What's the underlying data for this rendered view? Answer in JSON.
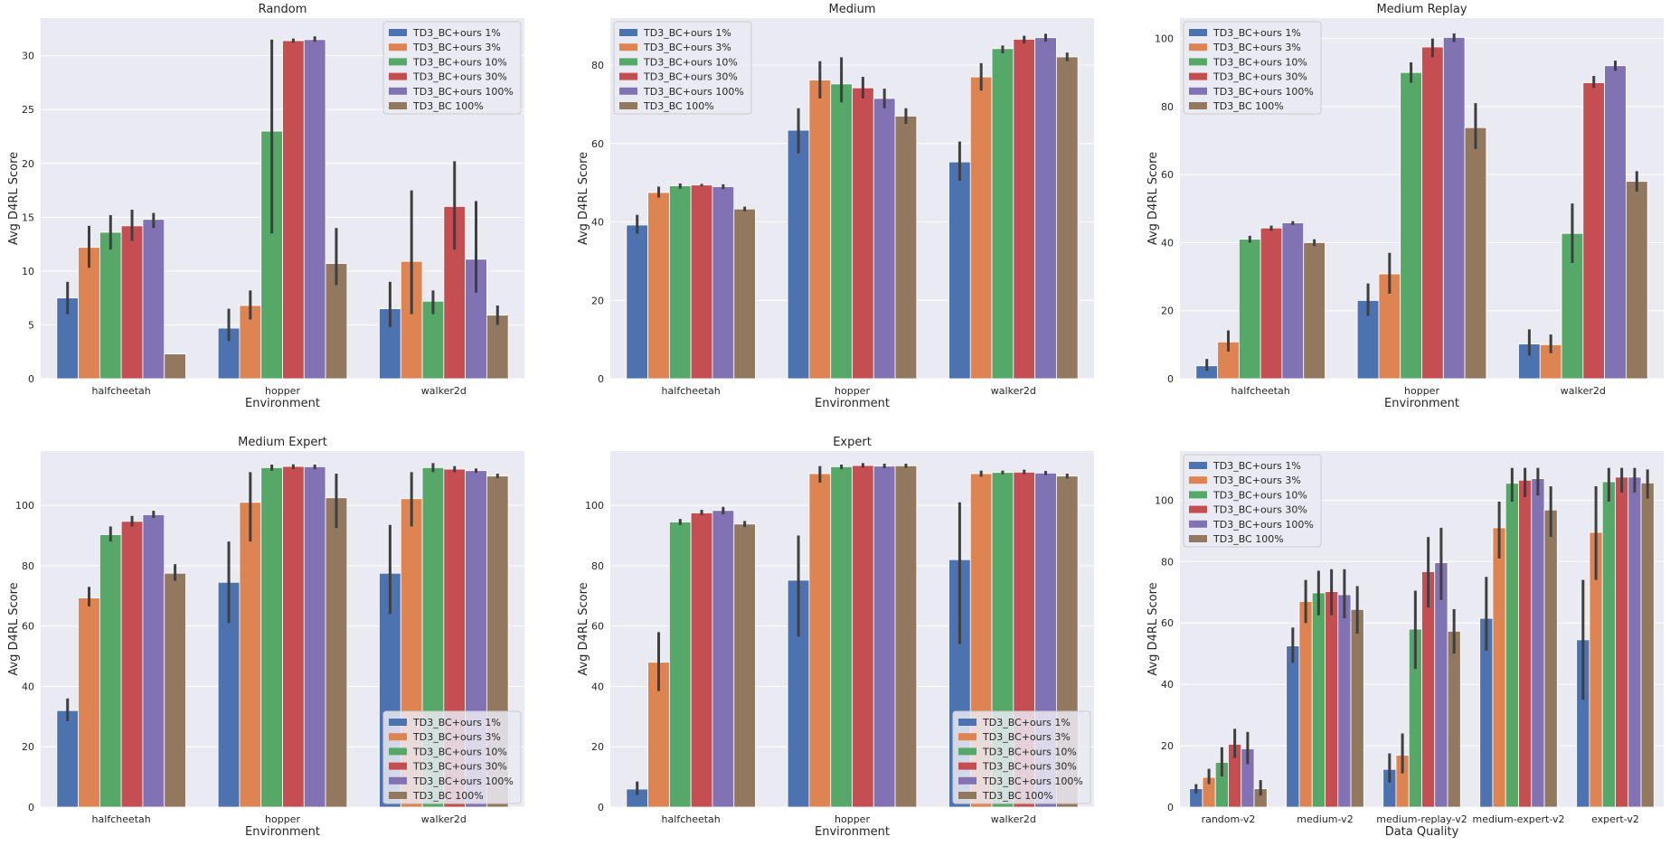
{
  "figure": {
    "series_names": [
      "TD3_BC+ours 1%",
      "TD3_BC+ours 3%",
      "TD3_BC+ours 10%",
      "TD3_BC+ours 30%",
      "TD3_BC+ours 100%",
      "TD3_BC 100%"
    ],
    "series_colors": [
      "#4c72b0",
      "#dd8452",
      "#55a868",
      "#c44e52",
      "#8172b3",
      "#937860"
    ],
    "background_color": "#eaeaf2",
    "error_bar_color": "#3f3f3f"
  },
  "chart_data": [
    {
      "type": "bar",
      "title": "Random",
      "xlabel": "Environment",
      "ylabel": "Avg D4RL Score",
      "ylim": [
        0,
        33.5
      ],
      "yticks": [
        0,
        5,
        10,
        15,
        20,
        25,
        30
      ],
      "legend": "top-right",
      "categories": [
        "halfcheetah",
        "hopper",
        "walker2d"
      ],
      "series": [
        {
          "name": "TD3_BC+ours 1%",
          "values": [
            7.5,
            4.7,
            6.5
          ],
          "err_low": [
            6.0,
            3.5,
            4.8
          ],
          "err_high": [
            9.0,
            6.5,
            9.0
          ]
        },
        {
          "name": "TD3_BC+ours 3%",
          "values": [
            12.2,
            6.8,
            10.9
          ],
          "err_low": [
            10.3,
            5.5,
            6.0
          ],
          "err_high": [
            14.2,
            8.2,
            17.5
          ]
        },
        {
          "name": "TD3_BC+ours 10%",
          "values": [
            13.6,
            23.0,
            7.2
          ],
          "err_low": [
            12.0,
            13.5,
            6.0
          ],
          "err_high": [
            15.2,
            31.5,
            8.2
          ]
        },
        {
          "name": "TD3_BC+ours 30%",
          "values": [
            14.2,
            31.4,
            16.0
          ],
          "err_low": [
            12.8,
            31.2,
            12.0
          ],
          "err_high": [
            15.7,
            31.6,
            20.2
          ]
        },
        {
          "name": "TD3_BC+ours 100%",
          "values": [
            14.8,
            31.5,
            11.1
          ],
          "err_low": [
            14.0,
            31.3,
            8.0
          ],
          "err_high": [
            15.4,
            31.8,
            16.5
          ]
        },
        {
          "name": "TD3_BC 100%",
          "values": [
            2.3,
            10.7,
            5.9
          ],
          "err_low": [
            2.3,
            8.7,
            5.0
          ],
          "err_high": [
            2.3,
            14.0,
            6.8
          ]
        }
      ]
    },
    {
      "type": "bar",
      "title": "Medium",
      "xlabel": "Environment",
      "ylabel": "Avg D4RL Score",
      "ylim": [
        0,
        92
      ],
      "yticks": [
        0,
        20,
        40,
        60,
        80
      ],
      "legend": "top-left",
      "categories": [
        "halfcheetah",
        "hopper",
        "walker2d"
      ],
      "series": [
        {
          "name": "TD3_BC+ours 1%",
          "values": [
            39.2,
            63.4,
            55.3
          ],
          "err_low": [
            37.0,
            57.5,
            50.5
          ],
          "err_high": [
            41.8,
            69.0,
            60.5
          ]
        },
        {
          "name": "TD3_BC+ours 3%",
          "values": [
            47.5,
            76.2,
            77.0
          ],
          "err_low": [
            46.2,
            71.5,
            73.5
          ],
          "err_high": [
            49.0,
            81.0,
            80.5
          ]
        },
        {
          "name": "TD3_BC+ours 10%",
          "values": [
            49.2,
            75.2,
            84.2
          ],
          "err_low": [
            48.5,
            70.5,
            83.0
          ],
          "err_high": [
            49.8,
            82.0,
            85.0
          ]
        },
        {
          "name": "TD3_BC+ours 30%",
          "values": [
            49.4,
            74.2,
            86.6
          ],
          "err_low": [
            49.1,
            71.5,
            85.5
          ],
          "err_high": [
            49.7,
            77.0,
            87.5
          ]
        },
        {
          "name": "TD3_BC+ours 100%",
          "values": [
            49.0,
            71.5,
            87.0
          ],
          "err_low": [
            48.4,
            69.0,
            86.0
          ],
          "err_high": [
            49.6,
            74.0,
            88.0
          ]
        },
        {
          "name": "TD3_BC 100%",
          "values": [
            43.3,
            67.0,
            82.1
          ],
          "err_low": [
            42.7,
            65.0,
            81.0
          ],
          "err_high": [
            43.9,
            69.0,
            83.2
          ]
        }
      ]
    },
    {
      "type": "bar",
      "title": "Medium Replay",
      "xlabel": "Environment",
      "ylabel": "Avg D4RL Score",
      "ylim": [
        0,
        106
      ],
      "yticks": [
        0,
        20,
        40,
        60,
        80,
        100
      ],
      "legend": "top-left",
      "categories": [
        "halfcheetah",
        "hopper",
        "walker2d"
      ],
      "series": [
        {
          "name": "TD3_BC+ours 1%",
          "values": [
            3.8,
            23.0,
            10.2
          ],
          "err_low": [
            2.3,
            18.5,
            6.8
          ],
          "err_high": [
            5.8,
            28.0,
            14.5
          ]
        },
        {
          "name": "TD3_BC+ours 3%",
          "values": [
            10.8,
            30.8,
            10.0
          ],
          "err_low": [
            8.0,
            25.0,
            7.5
          ],
          "err_high": [
            14.2,
            37.0,
            13.0
          ]
        },
        {
          "name": "TD3_BC+ours 10%",
          "values": [
            41.0,
            90.0,
            42.7
          ],
          "err_low": [
            40.0,
            87.0,
            34.0
          ],
          "err_high": [
            42.0,
            93.0,
            51.5
          ]
        },
        {
          "name": "TD3_BC+ours 30%",
          "values": [
            44.3,
            97.5,
            87.0
          ],
          "err_low": [
            43.5,
            94.5,
            85.5
          ],
          "err_high": [
            45.0,
            100.0,
            89.0
          ]
        },
        {
          "name": "TD3_BC+ours 100%",
          "values": [
            45.8,
            100.3,
            92.0
          ],
          "err_low": [
            45.2,
            99.0,
            90.5
          ],
          "err_high": [
            46.3,
            101.5,
            93.5
          ]
        },
        {
          "name": "TD3_BC 100%",
          "values": [
            40.0,
            73.8,
            58.0
          ],
          "err_low": [
            39.0,
            67.5,
            55.0
          ],
          "err_high": [
            41.0,
            81.0,
            61.0
          ]
        }
      ]
    },
    {
      "type": "bar",
      "title": "Medium Expert",
      "xlabel": "Environment",
      "ylabel": "Avg D4RL Score",
      "ylim": [
        0,
        118
      ],
      "yticks": [
        0,
        20,
        40,
        60,
        80,
        100
      ],
      "legend": "bottom-right",
      "categories": [
        "halfcheetah",
        "hopper",
        "walker2d"
      ],
      "series": [
        {
          "name": "TD3_BC+ours 1%",
          "values": [
            32.0,
            74.5,
            77.5
          ],
          "err_low": [
            28.5,
            61.0,
            64.0
          ],
          "err_high": [
            36.0,
            88.0,
            93.5
          ]
        },
        {
          "name": "TD3_BC+ours 3%",
          "values": [
            69.3,
            101.0,
            102.2
          ],
          "err_low": [
            66.5,
            88.0,
            93.0
          ],
          "err_high": [
            73.0,
            111.0,
            111.0
          ]
        },
        {
          "name": "TD3_BC+ours 10%",
          "values": [
            90.3,
            112.5,
            112.5
          ],
          "err_low": [
            88.0,
            111.5,
            111.0
          ],
          "err_high": [
            93.0,
            113.5,
            114.0
          ]
        },
        {
          "name": "TD3_BC+ours 30%",
          "values": [
            94.7,
            112.9,
            112.0
          ],
          "err_low": [
            93.0,
            112.0,
            111.0
          ],
          "err_high": [
            96.5,
            113.6,
            113.0
          ]
        },
        {
          "name": "TD3_BC+ours 100%",
          "values": [
            96.9,
            112.8,
            111.5
          ],
          "err_low": [
            95.8,
            112.0,
            110.8
          ],
          "err_high": [
            98.2,
            113.5,
            112.2
          ]
        },
        {
          "name": "TD3_BC 100%",
          "values": [
            77.5,
            102.5,
            109.7
          ],
          "err_low": [
            75.0,
            92.5,
            109.0
          ],
          "err_high": [
            80.5,
            110.5,
            110.5
          ]
        }
      ]
    },
    {
      "type": "bar",
      "title": "Expert",
      "xlabel": "Environment",
      "ylabel": "Avg D4RL Score",
      "ylim": [
        0,
        118
      ],
      "yticks": [
        0,
        20,
        40,
        60,
        80,
        100
      ],
      "legend": "bottom-right",
      "categories": [
        "halfcheetah",
        "hopper",
        "walker2d"
      ],
      "series": [
        {
          "name": "TD3_BC+ours 1%",
          "values": [
            6.0,
            75.2,
            82.0
          ],
          "err_low": [
            4.0,
            56.5,
            54.0
          ],
          "err_high": [
            8.5,
            90.0,
            101.0
          ]
        },
        {
          "name": "TD3_BC+ours 3%",
          "values": [
            48.0,
            110.5,
            110.5
          ],
          "err_low": [
            38.5,
            107.5,
            109.5
          ],
          "err_high": [
            58.0,
            113.0,
            111.5
          ]
        },
        {
          "name": "TD3_BC+ours 10%",
          "values": [
            94.5,
            112.8,
            110.9
          ],
          "err_low": [
            93.5,
            112.0,
            110.3
          ],
          "err_high": [
            95.5,
            113.5,
            111.5
          ]
        },
        {
          "name": "TD3_BC+ours 30%",
          "values": [
            97.5,
            113.2,
            111.0
          ],
          "err_low": [
            96.8,
            112.5,
            110.3
          ],
          "err_high": [
            98.5,
            114.0,
            111.8
          ]
        },
        {
          "name": "TD3_BC+ours 100%",
          "values": [
            98.3,
            113.0,
            110.7
          ],
          "err_low": [
            97.0,
            112.3,
            110.0
          ],
          "err_high": [
            99.5,
            113.8,
            111.4
          ]
        },
        {
          "name": "TD3_BC 100%",
          "values": [
            93.8,
            113.1,
            109.7
          ],
          "err_low": [
            92.8,
            112.4,
            108.9
          ],
          "err_high": [
            94.8,
            113.8,
            110.5
          ]
        }
      ]
    },
    {
      "type": "bar",
      "title": "",
      "xlabel": "Data Quality",
      "ylabel": "Avg D4RL Score",
      "ylim": [
        0,
        116
      ],
      "yticks": [
        0,
        20,
        40,
        60,
        80,
        100
      ],
      "legend": "top-left",
      "categories": [
        "random-v2",
        "medium-v2",
        "medium-replay-v2",
        "medium-expert-v2",
        "expert-v2"
      ],
      "series": [
        {
          "name": "TD3_BC+ours 1%",
          "values": [
            6.0,
            52.5,
            12.3,
            61.5,
            54.5
          ],
          "err_low": [
            4.5,
            47.0,
            8.0,
            51.0,
            35.0
          ],
          "err_high": [
            7.5,
            58.5,
            17.5,
            75.0,
            74.0
          ]
        },
        {
          "name": "TD3_BC+ours 3%",
          "values": [
            9.7,
            67.0,
            16.9,
            91.0,
            89.5
          ],
          "err_low": [
            7.5,
            60.0,
            11.0,
            81.0,
            74.0
          ],
          "err_high": [
            12.5,
            74.0,
            24.0,
            99.5,
            104.5
          ]
        },
        {
          "name": "TD3_BC+ours 10%",
          "values": [
            14.6,
            69.8,
            58.0,
            105.5,
            106.0
          ],
          "err_low": [
            10.0,
            62.5,
            45.0,
            99.5,
            99.5
          ],
          "err_high": [
            19.5,
            77.0,
            70.5,
            110.5,
            110.5
          ]
        },
        {
          "name": "TD3_BC+ours 30%",
          "values": [
            20.5,
            70.2,
            76.7,
            106.5,
            107.5
          ],
          "err_low": [
            16.0,
            62.5,
            65.0,
            101.0,
            102.5
          ],
          "err_high": [
            25.5,
            77.5,
            88.0,
            110.5,
            110.5
          ]
        },
        {
          "name": "TD3_BC+ours 100%",
          "values": [
            19.0,
            69.2,
            79.6,
            107.0,
            107.5
          ],
          "err_low": [
            14.0,
            61.5,
            67.5,
            101.5,
            102.5
          ],
          "err_high": [
            24.5,
            77.5,
            91.0,
            110.5,
            110.5
          ]
        },
        {
          "name": "TD3_BC 100%",
          "values": [
            6.0,
            64.4,
            57.3,
            96.8,
            105.6
          ],
          "err_low": [
            3.8,
            56.5,
            50.0,
            88.0,
            100.5
          ],
          "err_high": [
            8.8,
            72.0,
            64.5,
            104.5,
            110.0
          ]
        }
      ]
    }
  ]
}
